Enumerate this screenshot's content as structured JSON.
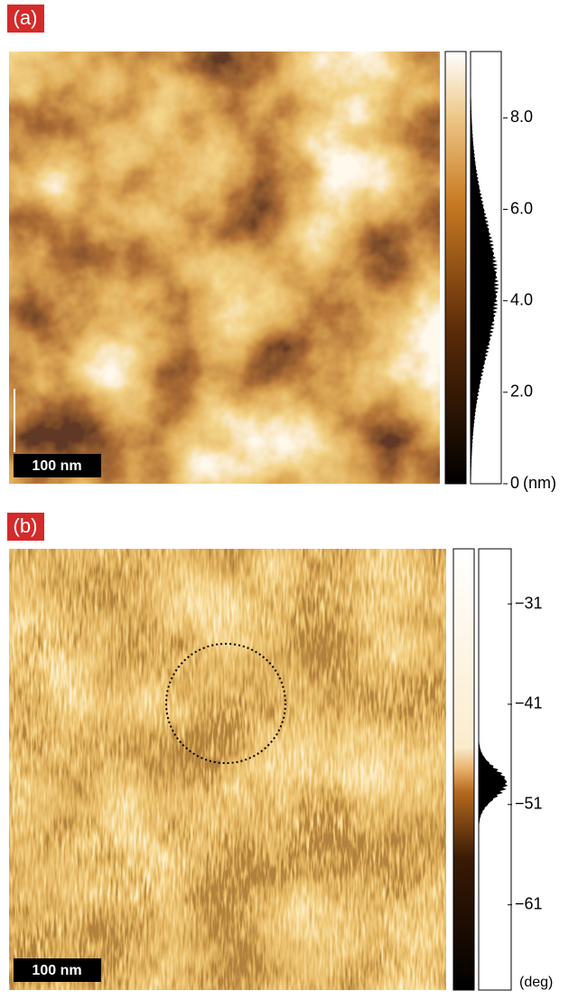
{
  "panels": [
    {
      "label": "(a)",
      "scale_bar": "100 nm",
      "colorbar": {
        "range": [
          0,
          9.45
        ],
        "unit": "(nm)",
        "ticks": [
          {
            "value": 8,
            "label": "8.0"
          },
          {
            "value": 6,
            "label": "6.0"
          },
          {
            "value": 4,
            "label": "4.0"
          },
          {
            "value": 2,
            "label": "2.0"
          },
          0
        ]
      }
    },
    {
      "label": "(b)",
      "scale_bar": "100 nm",
      "colorbar": {
        "range": [
          -69.5,
          -25.5
        ],
        "unit": "(deg)",
        "ticks": [
          {
            "value": -31,
            "label": "−31"
          },
          {
            "value": -41,
            "label": "−41"
          },
          {
            "value": -51,
            "label": "−51"
          },
          {
            "value": -61,
            "label": "−61"
          }
        ]
      }
    }
  ]
}
